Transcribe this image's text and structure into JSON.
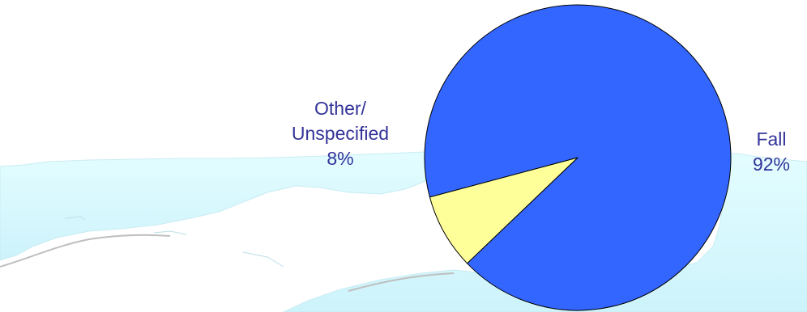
{
  "chart_data": {
    "type": "pie",
    "title": "",
    "slices": [
      {
        "label_lines": [
          "Fall"
        ],
        "value": 92,
        "percent_label": "92%",
        "color": "#3366ff"
      },
      {
        "label_lines": [
          "Other/",
          "Unspecified"
        ],
        "value": 8,
        "percent_label": "8%",
        "color": "#ffff99"
      }
    ],
    "legend": "none",
    "start_angle_deg": 195,
    "direction": "clockwise"
  },
  "colors": {
    "label_text": "#333399",
    "slice_outline": "#000000",
    "map_background": "#d9fbff",
    "page_background": "#ffffff"
  },
  "background_image": "map-outline-florida-panhandle"
}
